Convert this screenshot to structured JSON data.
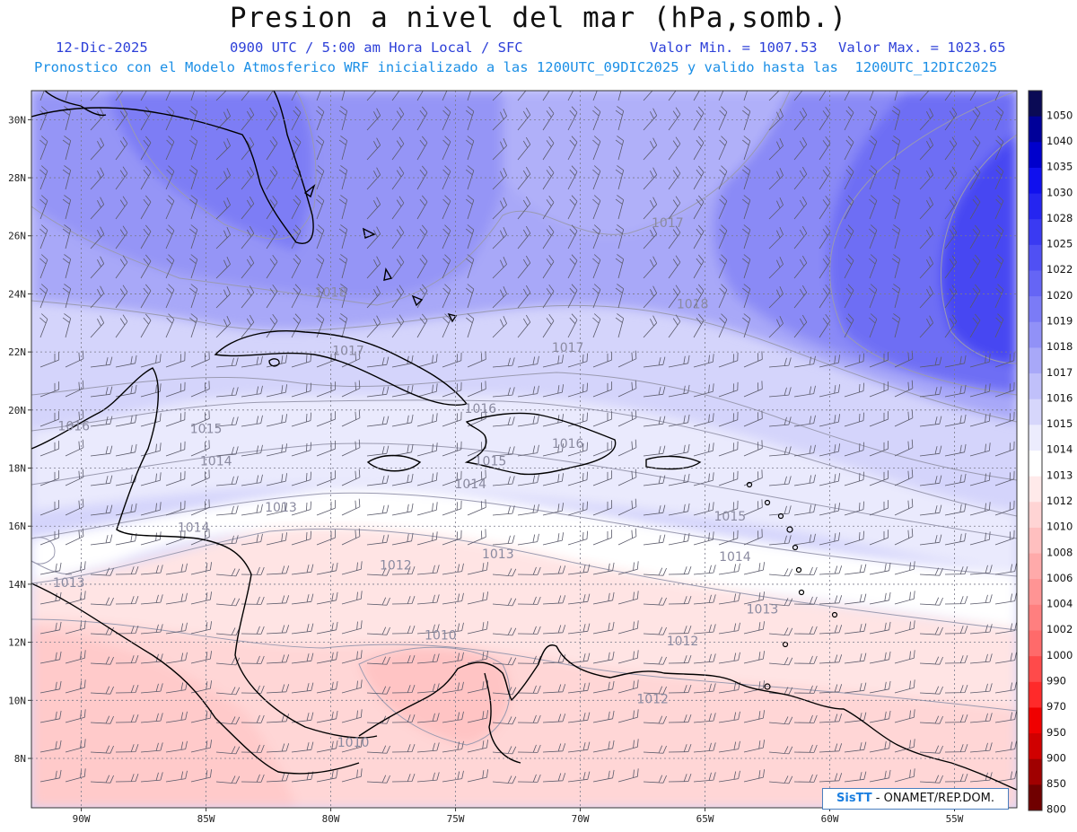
{
  "header": {
    "title": "Presion a nivel del mar (hPa,somb.)",
    "date": "12-Dic-2025",
    "time": "0900 UTC / 5:00 am Hora Local / SFC",
    "min_label": "Valor Min. = 1007.53",
    "max_label": "Valor Max. = 1023.65",
    "model_line": "Pronostico con el Modelo Atmosferico WRF inicializado a las 1200UTC_09DIC2025 y valido hasta las  1200UTC_12DIC2025"
  },
  "map": {
    "lat_ticks": [
      "30N",
      "28N",
      "26N",
      "24N",
      "22N",
      "20N",
      "18N",
      "16N",
      "14N",
      "12N",
      "10N",
      "8N"
    ],
    "lon_ticks": [
      "90W",
      "85W",
      "80W",
      "75W",
      "70W",
      "65W",
      "60W",
      "55W"
    ],
    "isobar_labels": [
      {
        "text": "1017",
        "lon": -66.5,
        "lat": 26.3
      },
      {
        "text": "1018",
        "lon": -80.0,
        "lat": 23.9
      },
      {
        "text": "1018",
        "lon": -65.5,
        "lat": 23.5
      },
      {
        "text": "1017",
        "lon": -79.3,
        "lat": 21.9
      },
      {
        "text": "1017",
        "lon": -70.5,
        "lat": 22.0
      },
      {
        "text": "1016",
        "lon": -74.0,
        "lat": 19.9
      },
      {
        "text": "1016",
        "lon": -90.3,
        "lat": 19.3
      },
      {
        "text": "1015",
        "lon": -85.0,
        "lat": 19.2
      },
      {
        "text": "1016",
        "lon": -70.5,
        "lat": 18.7
      },
      {
        "text": "1014",
        "lon": -84.6,
        "lat": 18.1
      },
      {
        "text": "1015",
        "lon": -73.6,
        "lat": 18.1
      },
      {
        "text": "1014",
        "lon": -74.4,
        "lat": 17.3
      },
      {
        "text": "1013",
        "lon": -82.0,
        "lat": 16.5
      },
      {
        "text": "1015",
        "lon": -64.0,
        "lat": 16.2
      },
      {
        "text": "1014",
        "lon": -85.5,
        "lat": 15.8
      },
      {
        "text": "1013",
        "lon": -73.3,
        "lat": 14.9
      },
      {
        "text": "1014",
        "lon": -63.8,
        "lat": 14.8
      },
      {
        "text": "1012",
        "lon": -77.4,
        "lat": 14.5
      },
      {
        "text": "1013",
        "lon": -90.5,
        "lat": 13.9
      },
      {
        "text": "1013",
        "lon": -62.7,
        "lat": 13.0
      },
      {
        "text": "1010",
        "lon": -75.6,
        "lat": 12.1
      },
      {
        "text": "1012",
        "lon": -65.9,
        "lat": 11.9
      },
      {
        "text": "1012",
        "lon": -67.1,
        "lat": 9.9
      },
      {
        "text": "1010",
        "lon": -79.1,
        "lat": 8.4
      }
    ]
  },
  "colorbar": {
    "labels": [
      "1050",
      "1040",
      "1035",
      "1030",
      "1028",
      "1025",
      "1022",
      "1020",
      "1019",
      "1018",
      "1017",
      "1016",
      "1015",
      "1014",
      "1013",
      "1012",
      "1010",
      "1008",
      "1006",
      "1004",
      "1002",
      "1000",
      "990",
      "970",
      "950",
      "900",
      "850",
      "800"
    ],
    "colors": [
      "#0a0a55",
      "#000099",
      "#0000cc",
      "#1010ee",
      "#2525f0",
      "#3a3af2",
      "#5050f4",
      "#6565f5",
      "#7b7bf6",
      "#9191f7",
      "#a8a8f8",
      "#c0c0fa",
      "#d6d6fb",
      "#ececfd",
      "#ffffff",
      "#ffeaea",
      "#ffd4d4",
      "#ffbfbf",
      "#ffaaaa",
      "#ff9494",
      "#ff7f7f",
      "#ff6a6a",
      "#ff4a4a",
      "#ff2a2a",
      "#f00000",
      "#d00000",
      "#a00000",
      "#700000"
    ]
  },
  "credit": {
    "logo": "SisTT",
    "text": " - ONAMET/REP.DOM."
  }
}
